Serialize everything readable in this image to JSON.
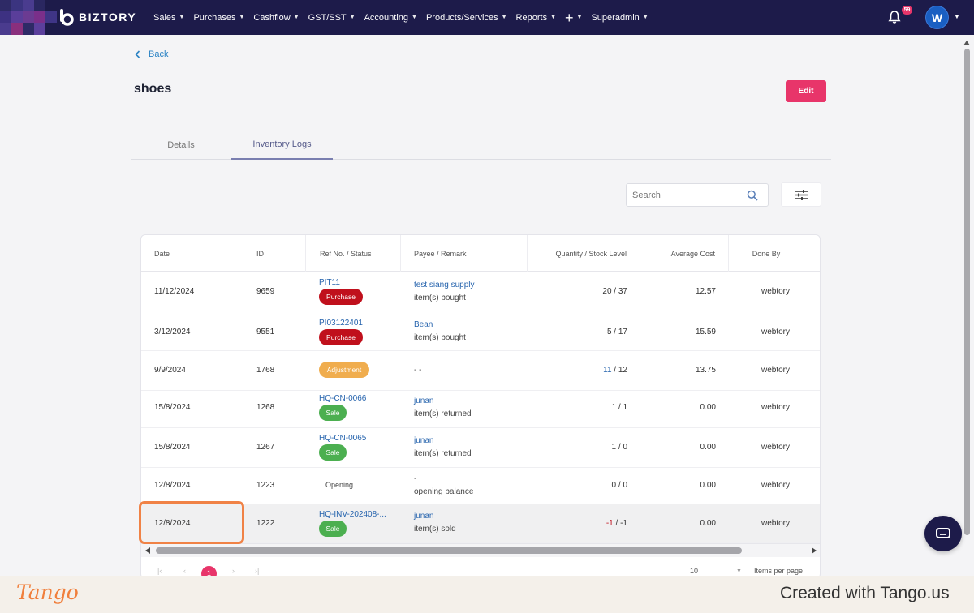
{
  "navbar": {
    "brand": "BIZTORY",
    "menu": [
      {
        "label": "Sales"
      },
      {
        "label": "Purchases"
      },
      {
        "label": "Cashflow"
      },
      {
        "label": "GST/SST"
      },
      {
        "label": "Accounting"
      },
      {
        "label": "Products/Services"
      },
      {
        "label": "Reports"
      },
      {
        "label": "+"
      },
      {
        "label": "Superadmin"
      }
    ],
    "notification_count": "59",
    "avatar_initial": "W",
    "bg_color": "#1d1b4a"
  },
  "back_label": "Back",
  "page_title": "shoes",
  "edit_label": "Edit",
  "tabs": [
    {
      "label": "Details",
      "active": false
    },
    {
      "label": "Inventory Logs",
      "active": true
    }
  ],
  "search": {
    "placeholder": "Search"
  },
  "table": {
    "columns": [
      "Date",
      "ID",
      "Ref No. / Status",
      "Payee / Remark",
      "Quantity / Stock Level",
      "Average Cost",
      "Done By"
    ],
    "rows": [
      {
        "date": "11/12/2024",
        "id": "9659",
        "ref": "PIT11",
        "status": "Purchase",
        "status_type": "purchase",
        "payee": "test siang supply",
        "remark": "item(s) bought",
        "qty": "20",
        "stock": "37",
        "avg_cost": "12.57",
        "done_by": "webtory"
      },
      {
        "date": "3/12/2024",
        "id": "9551",
        "ref": "PI03122401",
        "status": "Purchase",
        "status_type": "purchase",
        "payee": "Bean",
        "remark": "item(s) bought",
        "qty": "5",
        "stock": "17",
        "avg_cost": "15.59",
        "done_by": "webtory"
      },
      {
        "date": "9/9/2024",
        "id": "1768",
        "ref": "",
        "status": "Adjustment",
        "status_type": "adjust",
        "payee": "",
        "remark": "- -",
        "qty": "11",
        "stock": "12",
        "avg_cost": "13.75",
        "done_by": "webtory"
      },
      {
        "date": "15/8/2024",
        "id": "1268",
        "ref": "HQ-CN-0066",
        "status": "Sale",
        "status_type": "sale",
        "payee": "junan",
        "remark": "item(s) returned",
        "qty": "1",
        "stock": "1",
        "avg_cost": "0.00",
        "done_by": "webtory"
      },
      {
        "date": "15/8/2024",
        "id": "1267",
        "ref": "HQ-CN-0065",
        "status": "Sale",
        "status_type": "sale",
        "payee": "junan",
        "remark": "item(s) returned",
        "qty": "1",
        "stock": "0",
        "avg_cost": "0.00",
        "done_by": "webtory"
      },
      {
        "date": "12/8/2024",
        "id": "1223",
        "ref": "",
        "status": "Opening",
        "status_type": "plain",
        "payee": "-",
        "remark": "opening balance",
        "qty": "0",
        "stock": "0",
        "avg_cost": "0.00",
        "done_by": "webtory"
      },
      {
        "date": "12/8/2024",
        "id": "1222",
        "ref": "HQ-INV-202408-...",
        "status": "Sale",
        "status_type": "sale",
        "payee": "junan",
        "remark": "item(s) sold",
        "qty": "-1",
        "stock": "-1",
        "avg_cost": "0.00",
        "done_by": "webtory"
      }
    ]
  },
  "pagination": {
    "current_page": "1",
    "per_page": "10",
    "per_page_label": "Items per page"
  },
  "footer": {
    "logo": "Tango",
    "credit": "Created with Tango.us"
  },
  "colors": {
    "accent": "#e8356a",
    "purchase": "#c0101c",
    "sale": "#4caf50",
    "adjustment": "#f0ad4e",
    "link": "#2563ad",
    "highlight": "#f08246"
  }
}
